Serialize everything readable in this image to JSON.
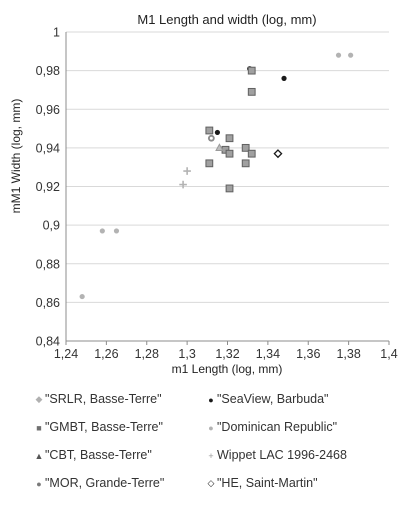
{
  "chart_data": {
    "type": "scatter",
    "title": "M1 Length and width (log, mm)",
    "xlabel": "m1 Length (log, mm)",
    "ylabel": "mM1 Width (log, mm)",
    "xlim": [
      1.24,
      1.4
    ],
    "ylim": [
      0.84,
      1.0
    ],
    "x_ticks": [
      "1,24",
      "1,26",
      "1,28",
      "1,3",
      "1,32",
      "1,34",
      "1,36",
      "1,38",
      "1,4"
    ],
    "y_ticks": [
      "0,84",
      "0,86",
      "0,88",
      "0,9",
      "0,92",
      "0,94",
      "0,96",
      "0,98",
      "1"
    ],
    "grid": "horizontal",
    "legend_position": "bottom",
    "series": [
      {
        "name": "\"SRLR, Basse-Terre\"",
        "marker": "diamond-small",
        "color": "#a6a6a6",
        "points": []
      },
      {
        "name": "\"SeaView, Barbuda\"",
        "marker": "circle",
        "color": "#1a1a1a",
        "points": [
          [
            1.315,
            0.948
          ],
          [
            1.331,
            0.981
          ],
          [
            1.348,
            0.976
          ]
        ]
      },
      {
        "name": "\"GMBT, Basse-Terre\"",
        "marker": "square",
        "color": "#808080",
        "points": [
          [
            1.311,
            0.949
          ],
          [
            1.311,
            0.932
          ],
          [
            1.319,
            0.939
          ],
          [
            1.321,
            0.945
          ],
          [
            1.321,
            0.937
          ],
          [
            1.321,
            0.919
          ],
          [
            1.329,
            0.94
          ],
          [
            1.329,
            0.932
          ],
          [
            1.332,
            0.98
          ],
          [
            1.332,
            0.969
          ],
          [
            1.332,
            0.937
          ]
        ]
      },
      {
        "name": "\"Dominican Republic\"",
        "marker": "circle",
        "color": "#b3b3b3",
        "points": [
          [
            1.248,
            0.863
          ],
          [
            1.258,
            0.897
          ],
          [
            1.265,
            0.897
          ],
          [
            1.375,
            0.988
          ],
          [
            1.381,
            0.988
          ]
        ]
      },
      {
        "name": "\"CBT, Basse-Terre\"",
        "marker": "triangle",
        "color": "#9a9a9a",
        "points": [
          [
            1.316,
            0.94
          ]
        ]
      },
      {
        "name": "Wippet LAC 1996-2468",
        "marker": "plus",
        "color": "#b3b3b3",
        "points": [
          [
            1.298,
            0.921
          ],
          [
            1.3,
            0.928
          ]
        ]
      },
      {
        "name": "\"MOR, Grande-Terre\"",
        "marker": "circle-ring",
        "color": "#8c8c8c",
        "points": [
          [
            1.312,
            0.945
          ]
        ]
      },
      {
        "name": "\"HE, Saint-Martin\"",
        "marker": "diamond-open",
        "color": "#1a1a1a",
        "points": [
          [
            1.345,
            0.937
          ]
        ]
      }
    ]
  },
  "legend": {
    "items": [
      {
        "label": "\"SRLR, Basse-Terre\"",
        "symbol": "◆",
        "color": "#b0b0b0"
      },
      {
        "label": "\"SeaView, Barbuda\"",
        "symbol": "●",
        "color": "#1a1a1a"
      },
      {
        "label": "\"GMBT, Basse-Terre\"",
        "symbol": "■",
        "color": "#707070"
      },
      {
        "label": "\"Dominican Republic\"",
        "symbol": "●",
        "color": "#b3b3b3"
      },
      {
        "label": "\"CBT, Basse-Terre\"",
        "symbol": "▲",
        "color": "#555555"
      },
      {
        "label": "Wippet LAC 1996-2468",
        "symbol": "+",
        "color": "#9a9a9a"
      },
      {
        "label": "\"MOR, Grande-Terre\"",
        "symbol": "●",
        "color": "#7a7a7a"
      },
      {
        "label": "\"HE, Saint-Martin\"",
        "symbol": "◇",
        "color": "#1a1a1a"
      }
    ]
  }
}
